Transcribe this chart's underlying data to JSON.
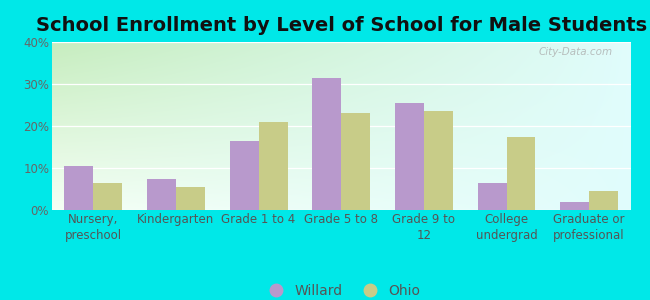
{
  "title": "School Enrollment by Level of School for Male Students",
  "categories": [
    "Nursery,\npreschool",
    "Kindergarten",
    "Grade 1 to 4",
    "Grade 5 to 8",
    "Grade 9 to\n12",
    "College\nundergrad",
    "Graduate or\nprofessional"
  ],
  "willard_values": [
    10.5,
    7.5,
    16.5,
    31.5,
    25.5,
    6.5,
    2.0
  ],
  "ohio_values": [
    6.5,
    5.5,
    21.0,
    23.0,
    23.5,
    17.5,
    4.5
  ],
  "willard_color": "#b899cc",
  "ohio_color": "#c8cc88",
  "background_outer": "#00e8e8",
  "ylim": [
    0,
    40
  ],
  "yticks": [
    0,
    10,
    20,
    30,
    40
  ],
  "ytick_labels": [
    "0%",
    "10%",
    "20%",
    "30%",
    "40%"
  ],
  "bar_width": 0.35,
  "legend_labels": [
    "Willard",
    "Ohio"
  ],
  "title_fontsize": 14,
  "tick_fontsize": 8.5,
  "legend_fontsize": 10,
  "grad_top": "#c8e8c0",
  "grad_bottom": "#f0fff0",
  "grad_right": "#e0f8f8"
}
